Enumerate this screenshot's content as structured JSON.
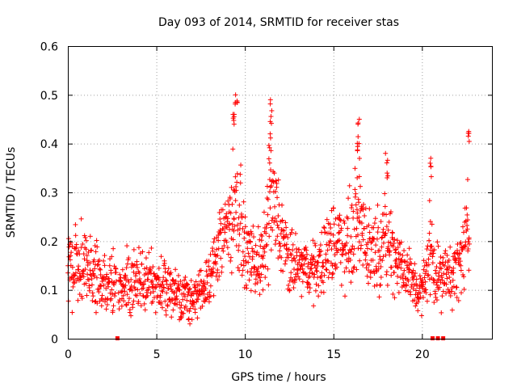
{
  "chart_data": {
    "type": "scatter",
    "title": "Day 093 of 2014, SRMTID for receiver stas",
    "xlabel": "GPS time / hours",
    "ylabel": "SRMTID / TECUs",
    "xlim": [
      0,
      24
    ],
    "ylim": [
      0,
      0.6
    ],
    "xticks": [
      "0",
      "5",
      "10",
      "15",
      "20"
    ],
    "yticks": [
      "0",
      "0.1",
      "0.2",
      "0.3",
      "0.4",
      "0.5",
      "0.6"
    ],
    "grid": true,
    "marker": "plus",
    "color": "#ff0000",
    "series": [
      {
        "name": "SRMTID",
        "sampled_envelope": [
          {
            "x": 0.0,
            "y": 0.15,
            "spread": 0.08
          },
          {
            "x": 1.0,
            "y": 0.15,
            "spread": 0.07
          },
          {
            "x": 2.0,
            "y": 0.12,
            "spread": 0.06
          },
          {
            "x": 3.0,
            "y": 0.1,
            "spread": 0.05
          },
          {
            "x": 4.0,
            "y": 0.12,
            "spread": 0.06
          },
          {
            "x": 5.0,
            "y": 0.11,
            "spread": 0.05
          },
          {
            "x": 6.0,
            "y": 0.1,
            "spread": 0.05
          },
          {
            "x": 7.0,
            "y": 0.08,
            "spread": 0.04
          },
          {
            "x": 8.0,
            "y": 0.11,
            "spread": 0.05
          },
          {
            "x": 8.5,
            "y": 0.2,
            "spread": 0.08
          },
          {
            "x": 9.0,
            "y": 0.23,
            "spread": 0.08
          },
          {
            "x": 9.5,
            "y": 0.28,
            "spread": 0.12
          },
          {
            "x": 10.0,
            "y": 0.18,
            "spread": 0.06
          },
          {
            "x": 10.5,
            "y": 0.16,
            "spread": 0.06
          },
          {
            "x": 11.0,
            "y": 0.15,
            "spread": 0.06
          },
          {
            "x": 11.5,
            "y": 0.28,
            "spread": 0.12
          },
          {
            "x": 12.0,
            "y": 0.22,
            "spread": 0.08
          },
          {
            "x": 12.5,
            "y": 0.15,
            "spread": 0.06
          },
          {
            "x": 13.0,
            "y": 0.15,
            "spread": 0.05
          },
          {
            "x": 14.0,
            "y": 0.14,
            "spread": 0.05
          },
          {
            "x": 15.0,
            "y": 0.2,
            "spread": 0.08
          },
          {
            "x": 16.0,
            "y": 0.2,
            "spread": 0.08
          },
          {
            "x": 16.5,
            "y": 0.25,
            "spread": 0.1
          },
          {
            "x": 17.0,
            "y": 0.18,
            "spread": 0.07
          },
          {
            "x": 18.0,
            "y": 0.2,
            "spread": 0.08
          },
          {
            "x": 19.0,
            "y": 0.14,
            "spread": 0.06
          },
          {
            "x": 20.0,
            "y": 0.09,
            "spread": 0.04
          },
          {
            "x": 20.5,
            "y": 0.18,
            "spread": 0.08
          },
          {
            "x": 21.0,
            "y": 0.12,
            "spread": 0.05
          },
          {
            "x": 22.0,
            "y": 0.14,
            "spread": 0.06
          },
          {
            "x": 22.5,
            "y": 0.2,
            "spread": 0.08
          }
        ],
        "peaks": [
          {
            "x": 9.5,
            "y": 0.5
          },
          {
            "x": 9.4,
            "y": 0.46
          },
          {
            "x": 11.5,
            "y": 0.49
          },
          {
            "x": 11.4,
            "y": 0.42
          },
          {
            "x": 16.4,
            "y": 0.45
          },
          {
            "x": 16.4,
            "y": 0.4
          },
          {
            "x": 18.0,
            "y": 0.38
          },
          {
            "x": 20.5,
            "y": 0.37
          },
          {
            "x": 22.6,
            "y": 0.425
          }
        ],
        "x_start": 0.0,
        "x_end": 22.7
      }
    ],
    "data_gaps_on_xaxis": [
      2.8,
      20.6,
      20.9,
      21.2
    ]
  }
}
